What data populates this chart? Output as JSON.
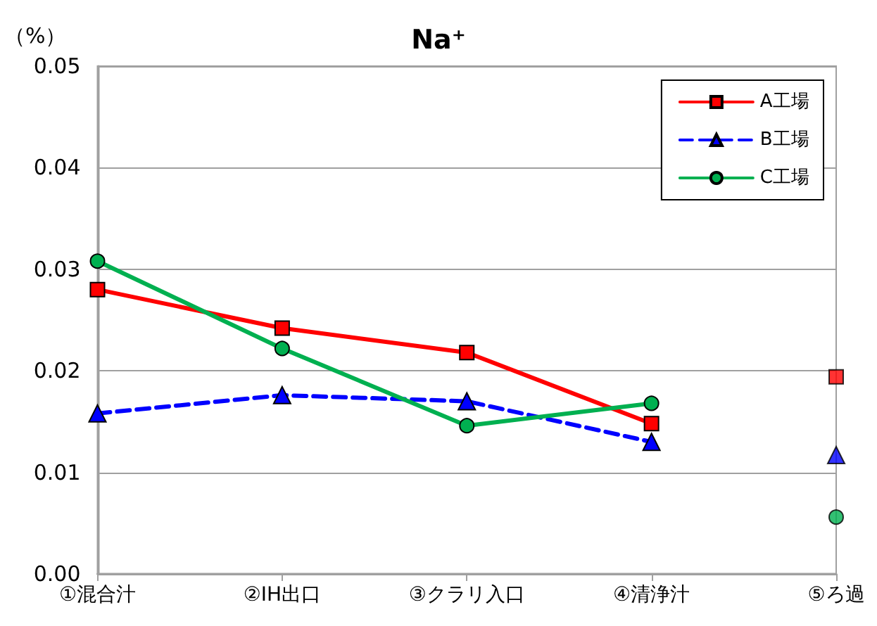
{
  "chart_data": {
    "type": "line",
    "title": "Na⁺",
    "ylabel": "（%）",
    "categories": [
      "①混合汁",
      "②IH出口",
      "③クラリ入口",
      "④清浄汁",
      "⑤ろ過"
    ],
    "series": [
      {
        "name": "A工場",
        "color": "#ff0000",
        "marker": "square",
        "line_style": "solid",
        "values": [
          0.028,
          0.0242,
          0.0218,
          0.0148,
          null
        ]
      },
      {
        "name": "B工場",
        "color": "#0000ff",
        "marker": "triangle",
        "line_style": "dashed",
        "values": [
          0.0158,
          0.0176,
          0.017,
          0.013,
          null
        ]
      },
      {
        "name": "C工場",
        "color": "#00b050",
        "marker": "circle",
        "line_style": "solid",
        "values": [
          0.0308,
          0.0222,
          0.0146,
          0.0168,
          null
        ]
      },
      {
        "type": "scatter",
        "color": "#ff0000",
        "marker": "square",
        "values": [
          null,
          null,
          null,
          null,
          0.0194
        ]
      },
      {
        "type": "scatter",
        "color": "#0000ff",
        "marker": "triangle",
        "values": [
          null,
          null,
          null,
          null,
          0.0117
        ]
      },
      {
        "type": "scatter",
        "color": "#00b050",
        "marker": "circle",
        "values": [
          null,
          null,
          null,
          null,
          0.0056
        ]
      }
    ],
    "ylim": [
      0,
      0.05
    ],
    "yticks": [
      {
        "value": 0,
        "label": "0.00"
      },
      0.01,
      0.02,
      0.03,
      0.04,
      0.05
    ],
    "grid": "y",
    "legend": "top right"
  }
}
